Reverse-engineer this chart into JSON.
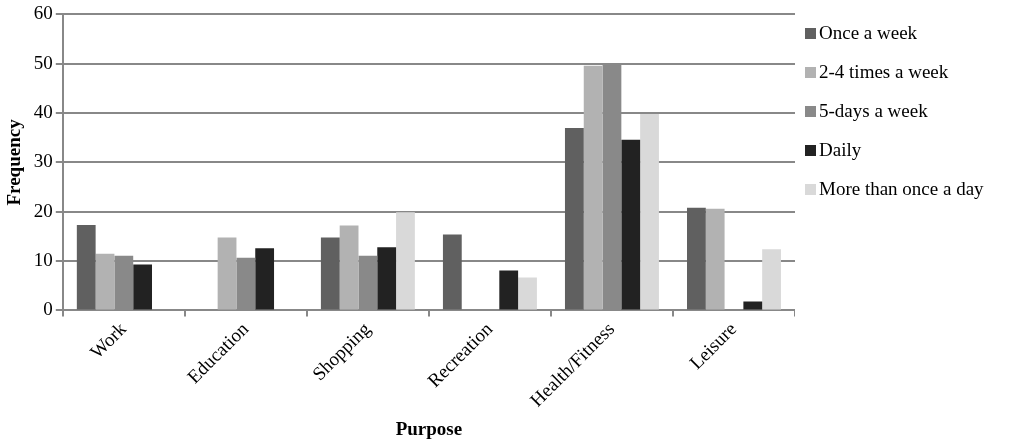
{
  "chart_data": {
    "type": "bar",
    "xlabel": "Purpose",
    "ylabel": "Frequency",
    "categories": [
      "Work",
      "Education",
      "Shopping",
      "Recreation",
      "Health/Fitness",
      "Leisure"
    ],
    "series": [
      {
        "name": "Once a week",
        "color": "#606060",
        "values": [
          17.3,
          null,
          14.8,
          15.4,
          37.0,
          20.8
        ]
      },
      {
        "name": "2-4 times a week",
        "color": "#b2b2b2",
        "values": [
          11.5,
          14.8,
          17.2,
          null,
          49.6,
          20.6
        ]
      },
      {
        "name": "5-days a week",
        "color": "#898989",
        "values": [
          11.1,
          10.7,
          11.1,
          null,
          50,
          null
        ]
      },
      {
        "name": "Daily",
        "color": "#222222",
        "values": [
          9.3,
          12.6,
          12.8,
          8.1,
          34.6,
          1.8
        ]
      },
      {
        "name": "More than once a day",
        "color": "#d9d9d9",
        "values": [
          null,
          null,
          19.9,
          6.7,
          39.8,
          12.4
        ]
      }
    ],
    "ylim": [
      0,
      60
    ],
    "yticks": [
      0,
      10,
      20,
      30,
      40,
      50,
      60
    ],
    "grid": "y",
    "legend": "right"
  }
}
